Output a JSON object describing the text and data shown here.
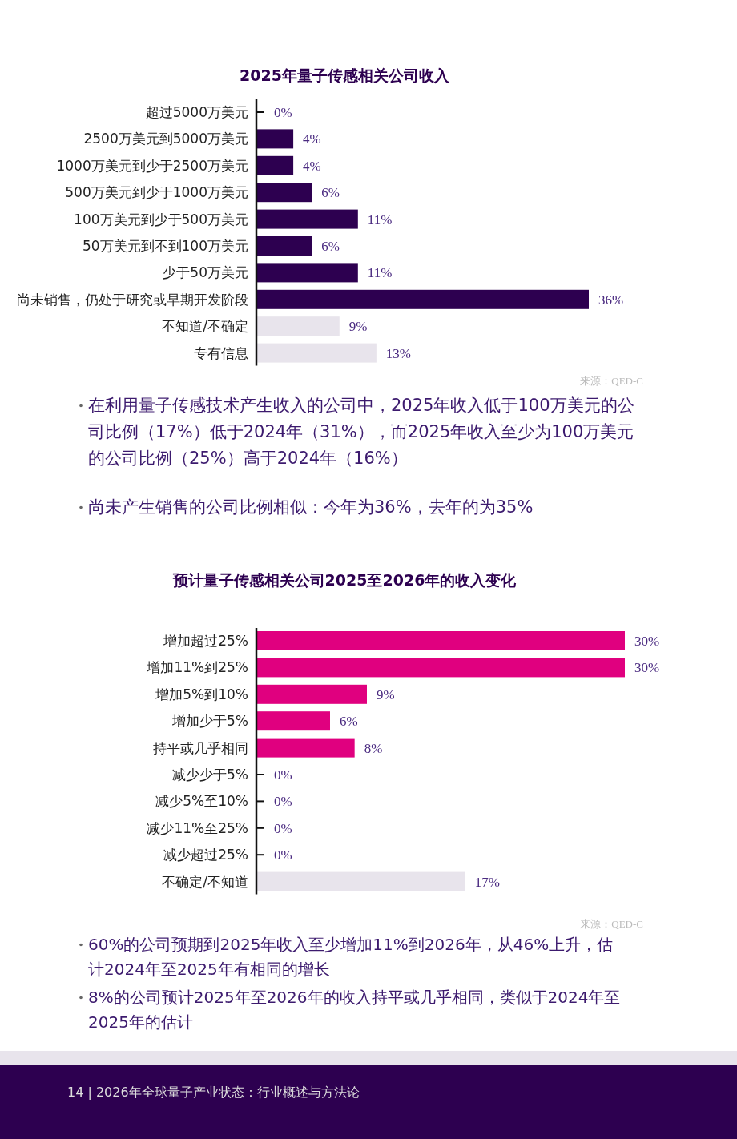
{
  "chart_data": [
    {
      "type": "bar",
      "orientation": "horizontal",
      "title": "2025年量子传感相关公司收入",
      "value_labels": [
        "0%",
        "4%",
        "4%",
        "6%",
        "11%",
        "6%",
        "11%",
        "36%",
        "9%",
        "13%"
      ],
      "categories": [
        "超过5000万美元",
        "2500万美元到5000万美元",
        "1000万美元到少于2500万美元",
        "500万美元到少于1000万美元",
        "100万美元到少于500万美元",
        "50万美元到不到100万美元",
        "少于50万美元",
        "尚未销售，仍处于研究或早期开发阶段",
        "不知道/不确定",
        "专有信息"
      ],
      "values": [
        0,
        4,
        4,
        6,
        11,
        6,
        11,
        36,
        9,
        13
      ],
      "colors": [
        "#2d0050",
        "#2d0050",
        "#2d0050",
        "#2d0050",
        "#2d0050",
        "#2d0050",
        "#2d0050",
        "#2d0050",
        "#e8e4ec",
        "#e8e4ec"
      ],
      "annotations": [
        "来源：QED-C",
        "在利用量子传感技术产生收入的公司中，2025年收入低于100万美元的公司比例（17%）低于2024年（31%），而2025年收入至少为100万美元的公司比例（25%）高于2024年（16%）",
        "尚未产生销售的公司比例相似：今年为36%，去年的为35%"
      ]
    },
    {
      "type": "bar",
      "orientation": "horizontal",
      "title": "预计量子传感相关公司2025至2026年的收入变化",
      "value_labels": [
        "30%",
        "30%",
        "9%",
        "6%",
        "8%",
        "0%",
        "0%",
        "0%",
        "0%",
        "17%"
      ],
      "categories": [
        "增加超过25%",
        "增加11%到25%",
        "增加5%到10%",
        "增加少于5%",
        "持平或几乎相同",
        "减少少于5%",
        "减少5%至10%",
        "减少11%至25%",
        "减少超过25%",
        "不确定/不知道"
      ],
      "values": [
        30,
        30,
        9,
        6,
        8,
        0,
        0,
        0,
        0,
        17
      ],
      "colors": [
        "#e0007f",
        "#e0007f",
        "#e0007f",
        "#e0007f",
        "#e0007f",
        "#e0007f",
        "#e0007f",
        "#e0007f",
        "#e0007f",
        "#e8e4ec"
      ],
      "annotations": [
        "来源：QED-C",
        "60%的公司预期到2025年收入至少增加11%到2026年，从46%上升，估计2024年至2025年有相同的增长",
        "8%的公司预计2025年至2026年的收入持平或几乎相同，类似于2024年至2025年的估计",
        "14 | 2026年全球量子产业状态：行业概述与方法论"
      ]
    }
  ]
}
